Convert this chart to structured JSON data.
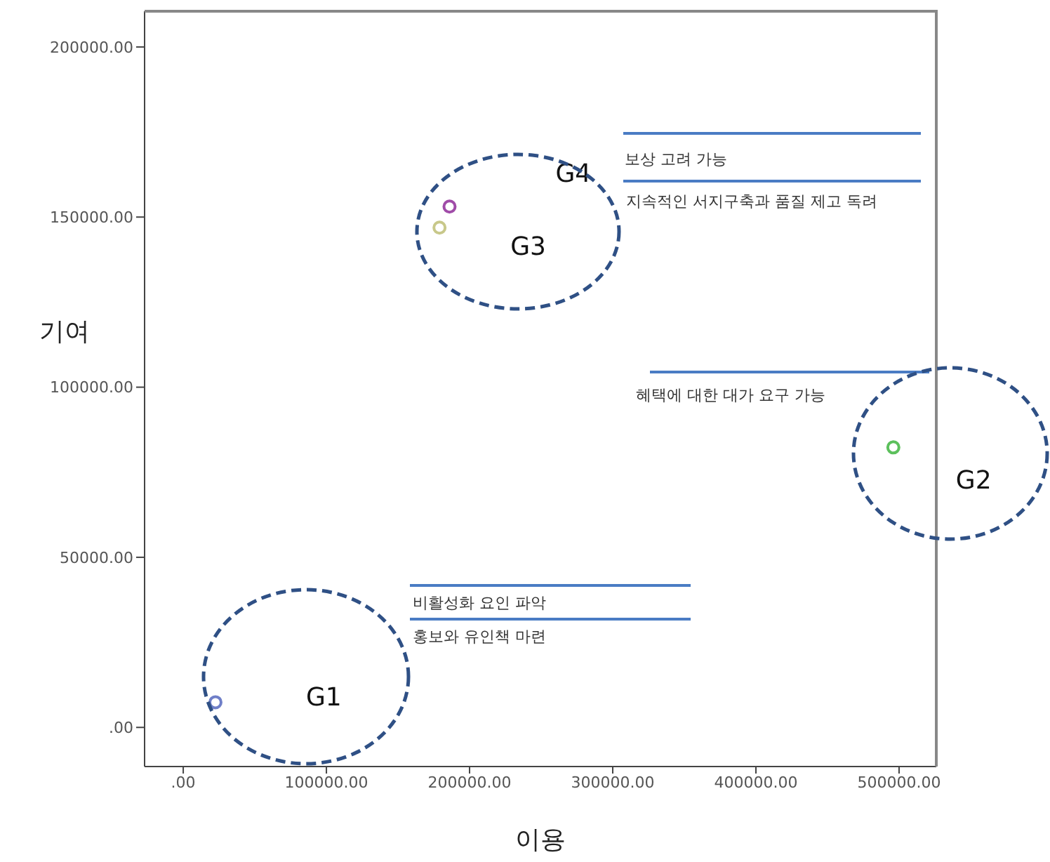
{
  "chart_data": {
    "type": "scatter",
    "xlabel": "이용",
    "ylabel": "기여",
    "xlim": [
      -27000,
      526000
    ],
    "ylim": [
      -11500,
      210500
    ],
    "xticks": [
      {
        "value": 0,
        "label": ".00"
      },
      {
        "value": 100000,
        "label": "100000.00"
      },
      {
        "value": 200000,
        "label": "200000.00"
      },
      {
        "value": 300000,
        "label": "300000.00"
      },
      {
        "value": 400000,
        "label": "400000.00"
      },
      {
        "value": 500000,
        "label": "500000.00"
      }
    ],
    "yticks": [
      {
        "value": 0,
        "label": ".00"
      },
      {
        "value": 50000,
        "label": "50000.00"
      },
      {
        "value": 100000,
        "label": "100000.00"
      },
      {
        "value": 150000,
        "label": "150000.00"
      },
      {
        "value": 200000,
        "label": "200000.00"
      }
    ],
    "series": [
      {
        "name": "G1",
        "color": "#6f7fc8",
        "x": [
          22500
        ],
        "values": [
          7400
        ]
      },
      {
        "name": "G2",
        "color": "#5cc05c",
        "x": [
          496000
        ],
        "values": [
          82300
        ]
      },
      {
        "name": "G3",
        "color": "#c8c88a",
        "x": [
          179000
        ],
        "values": [
          146900
        ]
      },
      {
        "name": "G4",
        "color": "#a04ca8",
        "x": [
          186000
        ],
        "values": [
          153100
        ]
      }
    ],
    "annotations": [
      "보상 고려 가능",
      "지속적인 서지구축과 품질 제고 독려",
      "혜택에 대한 대가 요구 가능",
      "비활성화 요인 파악",
      "홍보와 유인책 마련"
    ],
    "marker": "circle",
    "grid": false,
    "legend": false
  }
}
